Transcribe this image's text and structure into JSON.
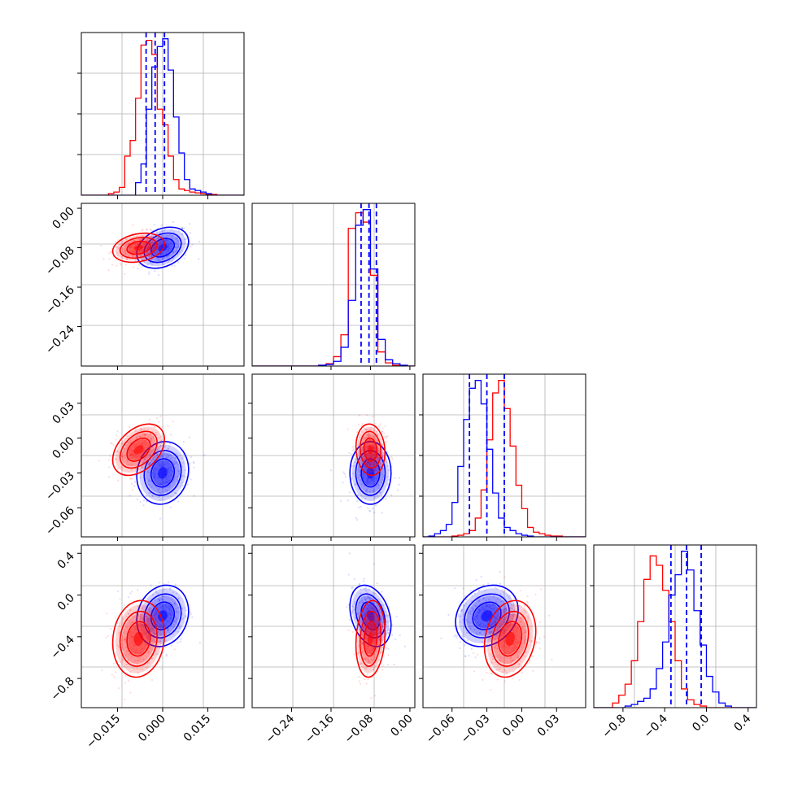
{
  "chart_data": {
    "type": "corner",
    "parameters": 4,
    "colors": {
      "series_a": "#0000ff",
      "series_b": "#ff0000"
    },
    "series": [
      {
        "color": "blue",
        "means": [
          0.0,
          -0.08,
          -0.03,
          -0.2
        ],
        "stds": [
          0.0035,
          0.017,
          0.011,
          0.12
        ],
        "corr_23": 0.0,
        "corr_13": 0.1,
        "corr_12": 0.3,
        "corr_24": -0.3,
        "corr_34": 0.2,
        "corr_14": 0.15
      },
      {
        "color": "red",
        "means": [
          -0.008,
          -0.08,
          -0.01,
          -0.42
        ],
        "stds": [
          0.0035,
          0.012,
          0.009,
          0.15
        ],
        "corr_12": 0.25,
        "corr_13": 0.4,
        "corr_23": -0.1,
        "corr_24": 0.15,
        "corr_34": 0.2,
        "corr_14": 0.1
      }
    ],
    "quantile_lines_blue": [
      [
        -0.0055,
        -0.0025,
        0.0006
      ],
      [
        -0.099,
        -0.083,
        -0.068
      ],
      [
        -0.045,
        -0.03,
        -0.015
      ],
      [
        -0.34,
        -0.19,
        -0.05
      ]
    ],
    "histograms": [
      {
        "edges": [
          -0.027,
          -0.0252,
          -0.0234,
          -0.0216,
          -0.0198,
          -0.018,
          -0.0162,
          -0.0144,
          -0.0126,
          -0.0108,
          -0.009,
          -0.0072,
          -0.0054,
          -0.0036,
          -0.0018,
          0.0,
          0.0018,
          0.0036,
          0.0054,
          0.0072,
          0.009,
          0.0108,
          0.0126,
          0.0144,
          0.0162,
          0.018,
          0.0198,
          0.0216,
          0.0234,
          0.0252,
          0.027
        ],
        "blue": [
          0,
          0,
          0,
          0,
          0,
          0,
          0,
          0,
          0,
          0,
          0.08,
          0.2,
          0.55,
          0.82,
          0.95,
          1.0,
          0.8,
          0.5,
          0.27,
          0.1,
          0.04,
          0.03,
          0.02,
          0.01,
          0,
          0,
          0,
          0,
          0,
          0
        ],
        "red": [
          0,
          0,
          0,
          0,
          0,
          0.01,
          0.02,
          0.05,
          0.25,
          0.35,
          0.62,
          0.96,
          0.99,
          0.9,
          0.55,
          0.45,
          0.25,
          0.1,
          0.04,
          0.03,
          0.02,
          0.015,
          0.01,
          0.005,
          0.005,
          0,
          0,
          0,
          0,
          0
        ]
      },
      {
        "edges": [
          -0.32,
          -0.305,
          -0.29,
          -0.275,
          -0.26,
          -0.245,
          -0.23,
          -0.215,
          -0.2,
          -0.185,
          -0.17,
          -0.155,
          -0.14,
          -0.125,
          -0.11,
          -0.095,
          -0.08,
          -0.065,
          -0.05,
          -0.035,
          -0.02,
          -0.005,
          0.01
        ],
        "blue": [
          0,
          0,
          0,
          0,
          0,
          0,
          0,
          0,
          0,
          0.005,
          0.01,
          0.03,
          0.12,
          0.42,
          0.9,
          1.0,
          0.62,
          0.17,
          0.04,
          0.015,
          0.005,
          0
        ],
        "red": [
          0,
          0,
          0,
          0,
          0,
          0,
          0,
          0,
          0,
          0.005,
          0.015,
          0.06,
          0.2,
          0.88,
          0.98,
          0.92,
          0.58,
          0.09,
          0.02,
          0.005,
          0,
          0
        ]
      },
      {
        "edges": [
          -0.085,
          -0.08,
          -0.075,
          -0.07,
          -0.065,
          -0.06,
          -0.055,
          -0.05,
          -0.045,
          -0.04,
          -0.035,
          -0.03,
          -0.025,
          -0.02,
          -0.015,
          -0.01,
          -0.005,
          0.0,
          0.005,
          0.01,
          0.015,
          0.02,
          0.025,
          0.03,
          0.035,
          0.04,
          0.045,
          0.05,
          0.055
        ],
        "blue": [
          0,
          0.005,
          0.02,
          0.04,
          0.08,
          0.22,
          0.45,
          0.75,
          0.95,
          1.0,
          0.85,
          0.56,
          0.28,
          0.12,
          0.06,
          0.04,
          0.02,
          0.01,
          0.005,
          0,
          0,
          0,
          0,
          0,
          0,
          0,
          0,
          0
        ],
        "red": [
          0,
          0,
          0,
          0,
          0,
          0.005,
          0.01,
          0.02,
          0.04,
          0.12,
          0.3,
          0.62,
          0.92,
          1.0,
          0.82,
          0.58,
          0.33,
          0.18,
          0.06,
          0.03,
          0.02,
          0.01,
          0.005,
          0.005,
          0,
          0,
          0,
          0
        ]
      },
      {
        "edges": [
          -1.08,
          -1.02,
          -0.96,
          -0.9,
          -0.84,
          -0.78,
          -0.72,
          -0.66,
          -0.6,
          -0.54,
          -0.48,
          -0.42,
          -0.36,
          -0.3,
          -0.24,
          -0.18,
          -0.12,
          -0.06,
          0.0,
          0.06,
          0.12,
          0.18,
          0.24,
          0.3,
          0.36,
          0.42,
          0.48
        ],
        "blue": [
          0,
          0,
          0,
          0,
          0,
          0.01,
          0.02,
          0.04,
          0.06,
          0.12,
          0.25,
          0.42,
          0.72,
          0.85,
          1.0,
          0.88,
          0.62,
          0.4,
          0.2,
          0.1,
          0.03,
          0.01,
          0,
          0,
          0,
          0
        ],
        "red": [
          0,
          0,
          0,
          0.03,
          0.08,
          0.15,
          0.3,
          0.55,
          0.82,
          0.97,
          0.91,
          0.75,
          0.55,
          0.3,
          0.12,
          0.05,
          0.02,
          0.01,
          0,
          0,
          0,
          0,
          0,
          0,
          0,
          0
        ]
      }
    ],
    "axes": [
      {
        "range": [
          -0.027,
          0.027
        ],
        "ticks": [
          -0.015,
          0.0,
          0.015
        ],
        "tick_labels": [
          "−0.015",
          "0.000",
          "0.015"
        ]
      },
      {
        "range": [
          -0.32,
          0.01
        ],
        "ticks": [
          -0.24,
          -0.16,
          -0.08,
          0.0
        ],
        "tick_labels": [
          "−0.24",
          "−0.16",
          "−0.08",
          "0.00"
        ]
      },
      {
        "range": [
          -0.085,
          0.055
        ],
        "ticks": [
          -0.06,
          -0.03,
          0.0,
          0.03
        ],
        "tick_labels": [
          "−0.06",
          "−0.03",
          "0.00",
          "0.03"
        ]
      },
      {
        "range": [
          -1.08,
          0.48
        ],
        "ticks": [
          -0.8,
          -0.4,
          0.0,
          0.4
        ],
        "tick_labels": [
          "−0.8",
          "−0.4",
          "0.0",
          "0.4"
        ]
      }
    ],
    "grid": true,
    "legend": "none"
  }
}
